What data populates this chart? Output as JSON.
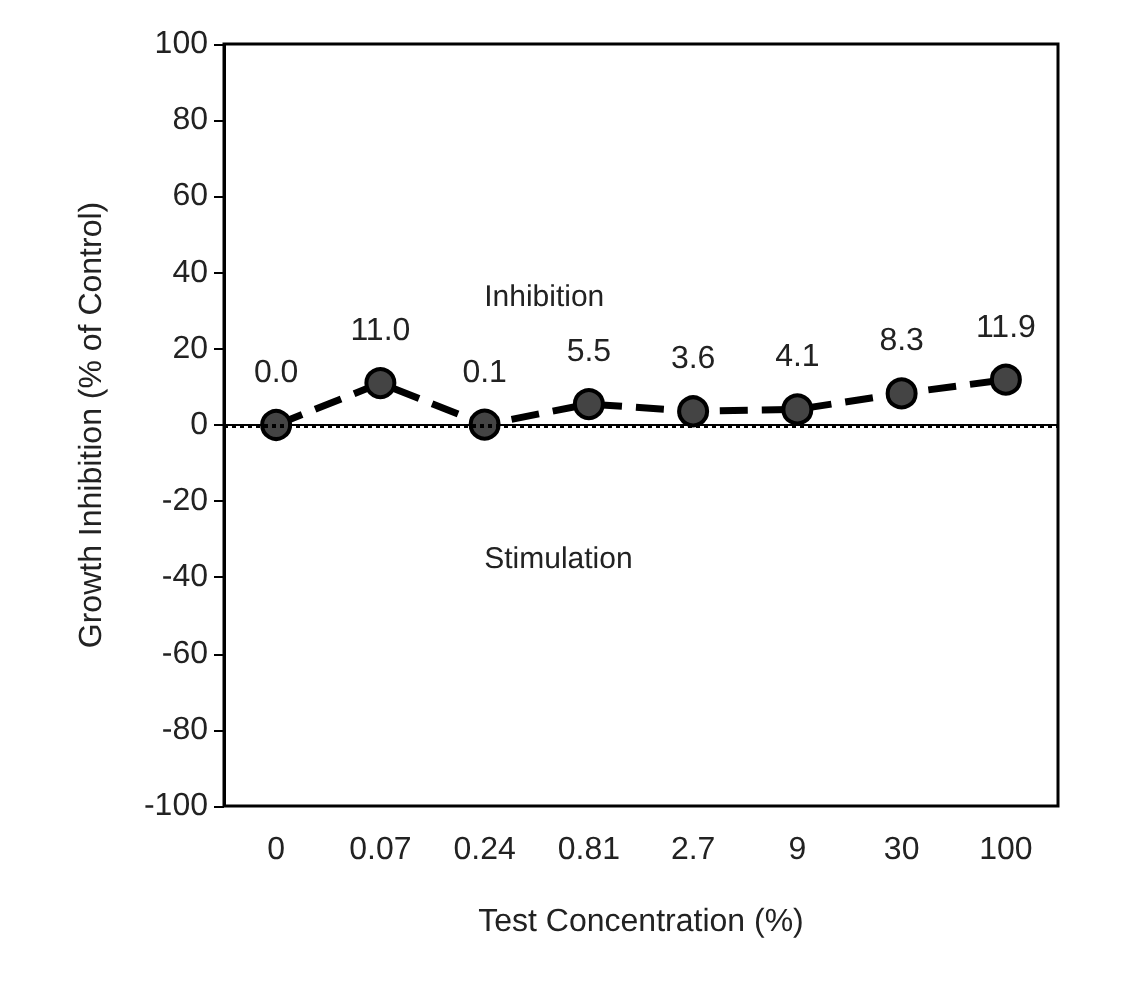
{
  "chart_data": {
    "type": "line",
    "xlabel": "Test Concentration (%)",
    "ylabel": "Growth Inhibition (% of Control)",
    "categories": [
      "0",
      "0.07",
      "0.24",
      "0.81",
      "2.7",
      "9",
      "30",
      "100"
    ],
    "series": [
      {
        "color": "#000000",
        "values": [
          0.0,
          11.0,
          0.1,
          5.5,
          3.6,
          4.1,
          8.3,
          11.9
        ],
        "value_labels": [
          "0.0",
          "11.0",
          "0.1",
          "5.5",
          "3.6",
          "4.1",
          "8.3",
          "11.9"
        ]
      }
    ],
    "ylim": [
      -100,
      100
    ],
    "yticks": [
      -100,
      -80,
      -60,
      -40,
      -20,
      0,
      20,
      40,
      60,
      80,
      100
    ],
    "ref_lines": [
      {
        "axis": "y",
        "value": 0,
        "color": "#000000",
        "line_style": "dotted"
      }
    ],
    "annotations": [
      "Inhibition",
      "Stimulation"
    ],
    "marker": "circle",
    "line_style": "dashed",
    "grid": false
  }
}
